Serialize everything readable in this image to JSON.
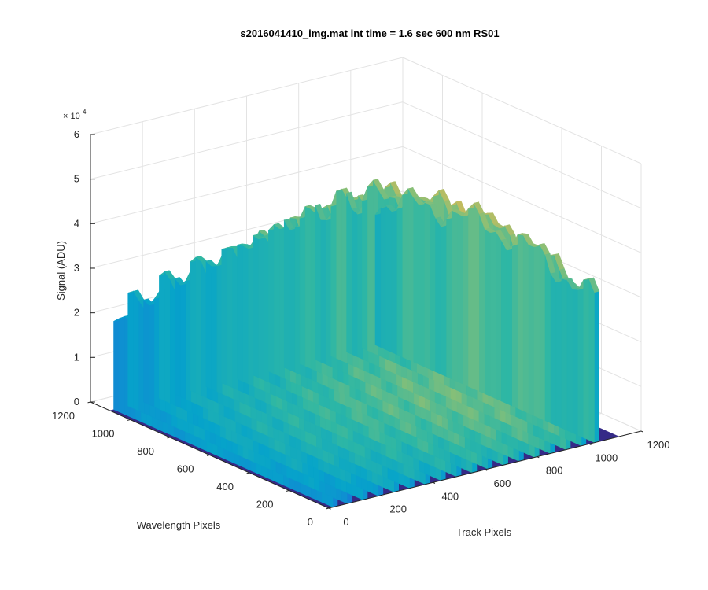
{
  "chart_data": {
    "type": "surface-3d",
    "title": "s2016041410_img.mat int time = 1.6 sec  600 nm RS01",
    "xlabel": "Track Pixels",
    "ylabel": "Wavelength Pixels",
    "zlabel": "Signal (ADU)",
    "z_exponent_label": "× 10",
    "z_exponent_power": "4",
    "xlim": [
      0,
      1200
    ],
    "ylim": [
      0,
      1200
    ],
    "zlim": [
      0,
      60000
    ],
    "x_ticks": [
      "0",
      "200",
      "400",
      "600",
      "800",
      "1000",
      "1200"
    ],
    "y_ticks": [
      "0",
      "200",
      "400",
      "600",
      "800",
      "1000",
      "1200"
    ],
    "z_ticks": [
      "0",
      "1",
      "2",
      "3",
      "4",
      "5",
      "6"
    ],
    "grid": true,
    "colormap": [
      "#352a87",
      "#0f5cdd",
      "#1481d6",
      "#06a4ca",
      "#2eb7a4",
      "#87bf77",
      "#d1bb59",
      "#fec832",
      "#f9fb0e"
    ],
    "background_level": 0,
    "illuminated_x_range": [
      0,
      1040
    ],
    "illuminated_y_range": [
      0,
      1200
    ],
    "fibers": [
      {
        "x": 25,
        "peak": 25000,
        "low": 18000
      },
      {
        "x": 80,
        "peak": 27000,
        "low": 19000
      },
      {
        "x": 140,
        "peak": 28500,
        "low": 20000
      },
      {
        "x": 200,
        "peak": 30000,
        "low": 21000
      },
      {
        "x": 260,
        "peak": 31500,
        "low": 22000
      },
      {
        "x": 320,
        "peak": 32500,
        "low": 22500
      },
      {
        "x": 380,
        "peak": 33500,
        "low": 23000
      },
      {
        "x": 440,
        "peak": 34500,
        "low": 23500
      },
      {
        "x": 500,
        "peak": 35500,
        "low": 24000
      },
      {
        "x": 560,
        "peak": 36500,
        "low": 24500
      },
      {
        "x": 620,
        "peak": 37500,
        "low": 25000
      },
      {
        "x": 680,
        "peak": 38500,
        "low": 25500
      },
      {
        "x": 740,
        "peak": 39000,
        "low": 26000
      },
      {
        "x": 800,
        "peak": 40000,
        "low": 26500
      },
      {
        "x": 860,
        "peak": 40500,
        "low": 27000
      },
      {
        "x": 920,
        "peak": 41000,
        "low": 27000
      },
      {
        "x": 980,
        "peak": 40000,
        "low": 26500
      },
      {
        "x": 1030,
        "peak": 38000,
        "low": 25000
      }
    ]
  }
}
